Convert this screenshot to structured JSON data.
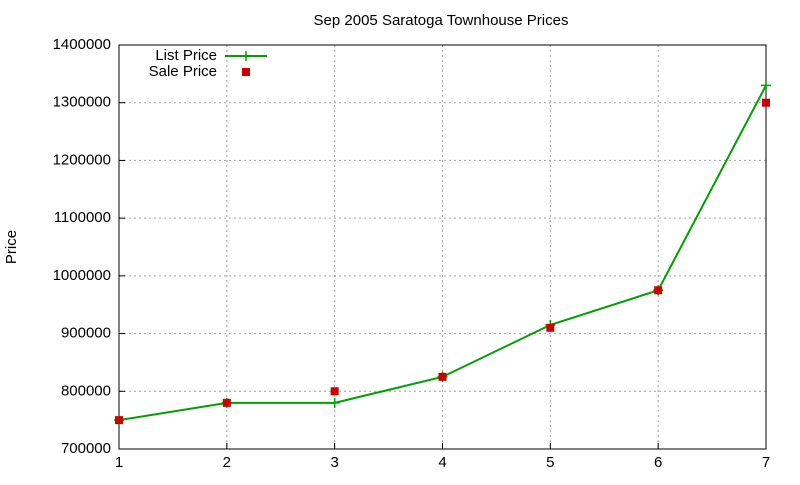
{
  "chart_data": {
    "type": "line",
    "title": "Sep 2005 Saratoga Townhouse Prices",
    "y_label": "Price",
    "x": [
      1,
      2,
      3,
      4,
      5,
      6,
      7
    ],
    "series": [
      {
        "name": "List Price",
        "color": "#00a000",
        "style": "linespoints",
        "values": [
          750000,
          780000,
          780000,
          825000,
          915000,
          975000,
          1330000
        ]
      },
      {
        "name": "Sale Price",
        "color": "#cc0000",
        "style": "points",
        "values": [
          750000,
          780000,
          800000,
          825000,
          910000,
          975000,
          1300000
        ]
      }
    ],
    "xlim": [
      1,
      7
    ],
    "xticks": [
      1,
      2,
      3,
      4,
      5,
      6,
      7
    ],
    "ylim": [
      700000,
      1400000
    ],
    "yticks": [
      700000,
      800000,
      900000,
      1000000,
      1100000,
      1200000,
      1300000,
      1400000
    ],
    "grid": true,
    "legend_position": "top-left"
  }
}
